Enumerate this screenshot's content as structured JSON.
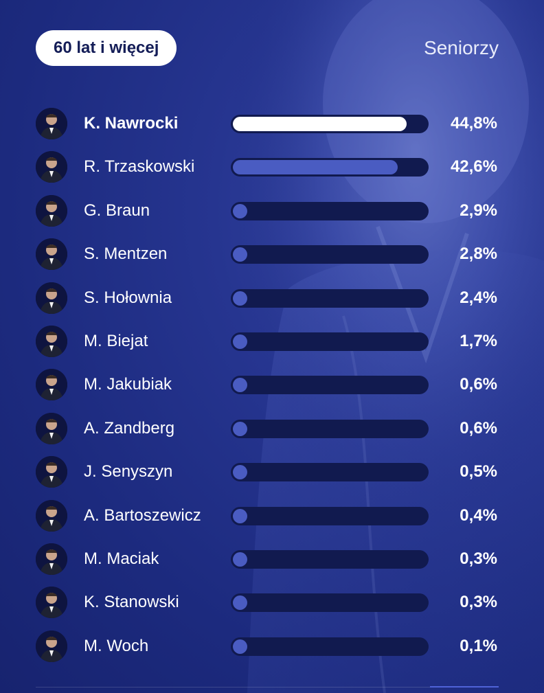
{
  "header": {
    "age_group": "60 lat i więcej",
    "group_label": "Seniorzy"
  },
  "chart_data": {
    "type": "bar",
    "orientation": "horizontal",
    "title": "",
    "xlim": [
      0,
      50
    ],
    "categories": [
      "K. Nawrocki",
      "R. Trzaskowski",
      "G. Braun",
      "S. Mentzen",
      "S. Hołownia",
      "M. Biejat",
      "M. Jakubiak",
      "A. Zandberg",
      "J. Senyszyn",
      "A. Bartoszewicz",
      "M. Maciak",
      "K. Stanowski",
      "M. Woch"
    ],
    "values": [
      44.8,
      42.6,
      2.9,
      2.8,
      2.4,
      1.7,
      0.6,
      0.6,
      0.5,
      0.4,
      0.3,
      0.3,
      0.1
    ],
    "value_labels": [
      "44,8%",
      "42,6%",
      "2,9%",
      "2,8%",
      "2,4%",
      "1,7%",
      "0,6%",
      "0,6%",
      "0,5%",
      "0,4%",
      "0,3%",
      "0,3%",
      "0,1%"
    ],
    "highlight_color": "#ffffff",
    "bar_color": "#4a5cc2",
    "track_color": "#111a4f"
  }
}
